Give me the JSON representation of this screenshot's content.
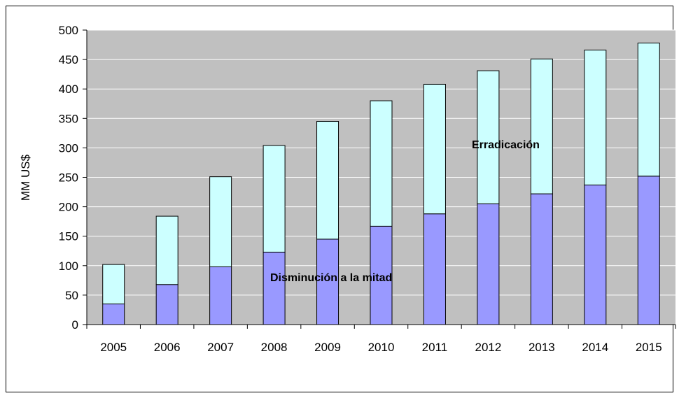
{
  "chart_data": {
    "type": "bar",
    "stacked": true,
    "categories": [
      "2005",
      "2006",
      "2007",
      "2008",
      "2009",
      "2010",
      "2011",
      "2012",
      "2013",
      "2014",
      "2015"
    ],
    "series": [
      {
        "values": [
          35,
          68,
          98,
          123,
          145,
          167,
          188,
          205,
          222,
          237,
          252
        ],
        "color": "#9999ff"
      },
      {
        "values": [
          67,
          116,
          153,
          181,
          200,
          213,
          220,
          226,
          229,
          229,
          226
        ],
        "color": "#ccffff"
      }
    ],
    "ylabel": "MM  US$",
    "ylim": [
      0,
      500
    ],
    "yticks": [
      0,
      50,
      100,
      150,
      200,
      250,
      300,
      350,
      400,
      450,
      500
    ],
    "grid": true,
    "plot_background": "#c0c0c0",
    "annotations": [
      {
        "text": "Disminución a la mitad"
      },
      {
        "text": "Erradicación"
      }
    ]
  }
}
